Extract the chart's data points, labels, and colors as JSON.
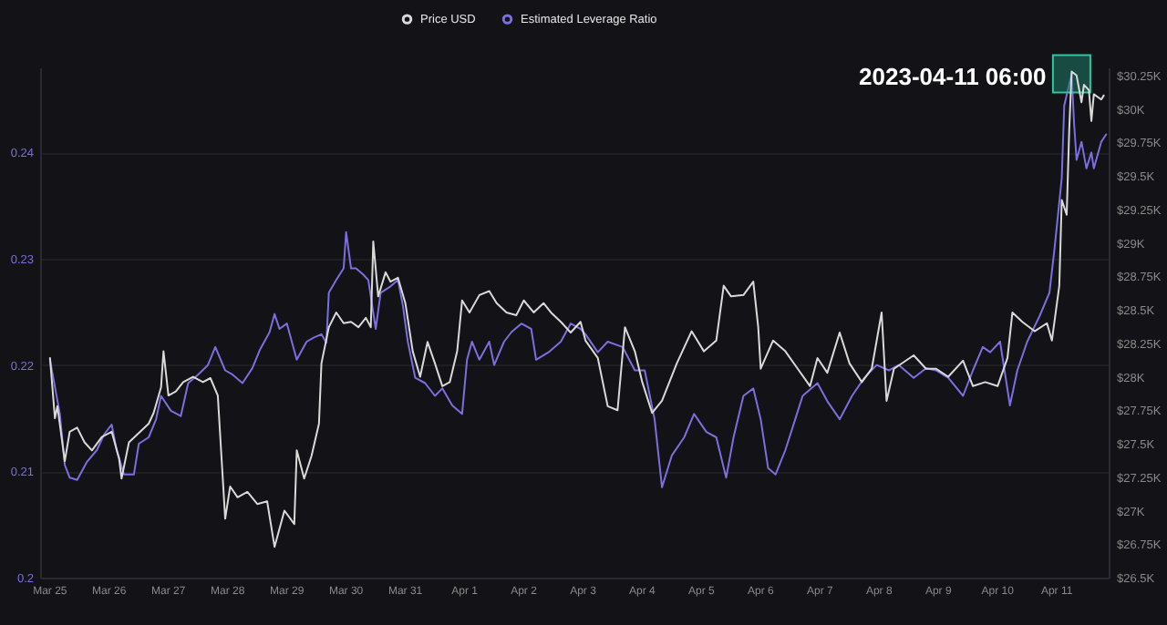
{
  "chart_data": {
    "type": "line",
    "legend": "top",
    "grid": "y",
    "xlim": [
      "2023-03-24T20:00",
      "2023-04-11T21:00"
    ],
    "xticks": [
      {
        "value": "2023-03-25",
        "label": "Mar 25"
      },
      {
        "value": "2023-03-26",
        "label": "Mar 26"
      },
      {
        "value": "2023-03-27",
        "label": "Mar 27"
      },
      {
        "value": "2023-03-28",
        "label": "Mar 28"
      },
      {
        "value": "2023-03-29",
        "label": "Mar 29"
      },
      {
        "value": "2023-03-30",
        "label": "Mar 30"
      },
      {
        "value": "2023-03-31",
        "label": "Mar 31"
      },
      {
        "value": "2023-04-01",
        "label": "Apr 1"
      },
      {
        "value": "2023-04-02",
        "label": "Apr 2"
      },
      {
        "value": "2023-04-03",
        "label": "Apr 3"
      },
      {
        "value": "2023-04-04",
        "label": "Apr 4"
      },
      {
        "value": "2023-04-05",
        "label": "Apr 5"
      },
      {
        "value": "2023-04-06",
        "label": "Apr 6"
      },
      {
        "value": "2023-04-07",
        "label": "Apr 7"
      },
      {
        "value": "2023-04-08",
        "label": "Apr 8"
      },
      {
        "value": "2023-04-09",
        "label": "Apr 9"
      },
      {
        "value": "2023-04-10",
        "label": "Apr 10"
      },
      {
        "value": "2023-04-11",
        "label": "Apr 11"
      }
    ],
    "ylim": [
      0.2,
      0.248
    ],
    "yticks": [
      0.2,
      0.21,
      0.22,
      0.23,
      0.24
    ],
    "y2lim": [
      26500,
      30310
    ],
    "y2ticks": [
      {
        "value": 26500,
        "label": "$26.5K"
      },
      {
        "value": 26750,
        "label": "$26.75K"
      },
      {
        "value": 27000,
        "label": "$27K"
      },
      {
        "value": 27250,
        "label": "$27.25K"
      },
      {
        "value": 27500,
        "label": "$27.5K"
      },
      {
        "value": 27750,
        "label": "$27.75K"
      },
      {
        "value": 28000,
        "label": "$28K"
      },
      {
        "value": 28250,
        "label": "$28.25K"
      },
      {
        "value": 28500,
        "label": "$28.5K"
      },
      {
        "value": 28750,
        "label": "$28.75K"
      },
      {
        "value": 29000,
        "label": "$29K"
      },
      {
        "value": 29250,
        "label": "$29.25K"
      },
      {
        "value": 29500,
        "label": "$29.5K"
      },
      {
        "value": 29750,
        "label": "$29.75K"
      },
      {
        "value": 30000,
        "label": "$30K"
      },
      {
        "value": 30250,
        "label": "$30.25K"
      }
    ],
    "annotations": [
      {
        "text": "2023-04-11 06:00",
        "x": "2023-04-11T06:00",
        "y": 0.2474
      }
    ],
    "series": [
      {
        "name": "Price USD",
        "color": "#d9d9d9",
        "axis": "y2",
        "x": [
          "2023-03-25T00:00",
          "2023-03-25T02:00",
          "2023-03-25T03:00",
          "2023-03-25T06:00",
          "2023-03-25T08:00",
          "2023-03-25T11:00",
          "2023-03-25T14:00",
          "2023-03-25T17:00",
          "2023-03-25T21:00",
          "2023-03-26T01:00",
          "2023-03-26T04:00",
          "2023-03-26T05:00",
          "2023-03-26T08:00",
          "2023-03-26T12:00",
          "2023-03-26T16:00",
          "2023-03-26T18:00",
          "2023-03-26T21:00",
          "2023-03-26T22:00",
          "2023-03-27T00:00",
          "2023-03-27T03:00",
          "2023-03-27T06:00",
          "2023-03-27T10:00",
          "2023-03-27T14:00",
          "2023-03-27T17:00",
          "2023-03-27T20:00",
          "2023-03-27T23:00",
          "2023-03-28T01:00",
          "2023-03-28T04:00",
          "2023-03-28T08:00",
          "2023-03-28T12:00",
          "2023-03-28T16:00",
          "2023-03-28T19:00",
          "2023-03-28T23:00",
          "2023-03-29T03:00",
          "2023-03-29T04:00",
          "2023-03-29T07:00",
          "2023-03-29T10:00",
          "2023-03-29T13:00",
          "2023-03-29T14:00",
          "2023-03-29T17:00",
          "2023-03-29T20:00",
          "2023-03-29T23:00",
          "2023-03-30T02:00",
          "2023-03-30T05:00",
          "2023-03-30T08:00",
          "2023-03-30T10:00",
          "2023-03-30T11:00",
          "2023-03-30T13:00",
          "2023-03-30T16:00",
          "2023-03-30T18:00",
          "2023-03-30T21:00",
          "2023-03-31T00:00",
          "2023-03-31T03:00",
          "2023-03-31T06:00",
          "2023-03-31T09:00",
          "2023-03-31T12:00",
          "2023-03-31T15:00",
          "2023-03-31T18:00",
          "2023-03-31T21:00",
          "2023-03-31T23:00",
          "2023-04-01T02:00",
          "2023-04-01T06:00",
          "2023-04-01T10:00",
          "2023-04-01T13:00",
          "2023-04-01T17:00",
          "2023-04-01T21:00",
          "2023-04-02T00:00",
          "2023-04-02T04:00",
          "2023-04-02T08:00",
          "2023-04-02T11:00",
          "2023-04-02T15:00",
          "2023-04-02T19:00",
          "2023-04-02T23:00",
          "2023-04-03T01:00",
          "2023-04-03T06:00",
          "2023-04-03T10:00",
          "2023-04-03T14:00",
          "2023-04-03T17:00",
          "2023-04-03T21:00",
          "2023-04-04T00:00",
          "2023-04-04T04:00",
          "2023-04-04T08:00",
          "2023-04-04T14:00",
          "2023-04-04T20:00",
          "2023-04-05T01:00",
          "2023-04-05T06:00",
          "2023-04-05T09:00",
          "2023-04-05T12:00",
          "2023-04-05T17:00",
          "2023-04-05T21:00",
          "2023-04-05T23:00",
          "2023-04-06T00:00",
          "2023-04-06T05:00",
          "2023-04-06T10:00",
          "2023-04-06T15:00",
          "2023-04-06T20:00",
          "2023-04-06T23:00",
          "2023-04-07T03:00",
          "2023-04-07T08:00",
          "2023-04-07T12:00",
          "2023-04-07T17:00",
          "2023-04-07T21:00",
          "2023-04-08T01:00",
          "2023-04-08T03:00",
          "2023-04-08T06:00",
          "2023-04-08T14:00",
          "2023-04-08T19:00",
          "2023-04-08T23:00",
          "2023-04-09T04:00",
          "2023-04-09T10:00",
          "2023-04-09T14:00",
          "2023-04-09T19:00",
          "2023-04-10T00:00",
          "2023-04-10T04:00",
          "2023-04-10T06:00",
          "2023-04-10T10:00",
          "2023-04-10T15:00",
          "2023-04-10T20:00",
          "2023-04-10T22:00",
          "2023-04-11T01:00",
          "2023-04-11T02:00",
          "2023-04-11T04:00",
          "2023-04-11T05:00",
          "2023-04-11T06:00",
          "2023-04-11T08:00",
          "2023-04-11T10:00",
          "2023-04-11T11:00",
          "2023-04-11T13:00",
          "2023-04-11T14:00",
          "2023-04-11T15:00",
          "2023-04-11T18:00",
          "2023-04-11T19:00"
        ],
        "values": [
          28140,
          27690,
          27780,
          27370,
          27590,
          27620,
          27510,
          27450,
          27550,
          27590,
          27390,
          27240,
          27510,
          27580,
          27650,
          27730,
          27920,
          28190,
          27860,
          27890,
          27960,
          28000,
          27960,
          27990,
          27860,
          26940,
          27180,
          27100,
          27140,
          27050,
          27070,
          26730,
          27000,
          26900,
          27450,
          27240,
          27410,
          27650,
          28100,
          28370,
          28480,
          28400,
          28410,
          28370,
          28440,
          28370,
          29010,
          28600,
          28780,
          28710,
          28740,
          28550,
          28190,
          28000,
          28260,
          28100,
          27930,
          27960,
          28190,
          28570,
          28480,
          28610,
          28640,
          28550,
          28480,
          28460,
          28570,
          28480,
          28550,
          28480,
          28410,
          28330,
          28410,
          28270,
          28140,
          27780,
          27750,
          28370,
          28190,
          27960,
          27730,
          27820,
          28100,
          28340,
          28190,
          28270,
          28680,
          28600,
          28610,
          28710,
          28370,
          28060,
          28270,
          28190,
          28060,
          27930,
          28140,
          28030,
          28330,
          28100,
          27960,
          28060,
          28480,
          27820,
          28060,
          28160,
          28060,
          28060,
          28000,
          28120,
          27930,
          27960,
          27930,
          28140,
          28480,
          28410,
          28340,
          28400,
          28270,
          28680,
          29320,
          29210,
          29830,
          30280,
          30250,
          30050,
          30180,
          30140,
          29910,
          30110,
          30070,
          30100
        ]
      },
      {
        "name": "Estimated Leverage Ratio",
        "color": "#7b6fe0",
        "x": [
          "2023-03-25T00:00",
          "2023-03-25T04:00",
          "2023-03-25T06:00",
          "2023-03-25T08:00",
          "2023-03-25T11:00",
          "2023-03-25T15:00",
          "2023-03-25T19:00",
          "2023-03-25T22:00",
          "2023-03-26T01:00",
          "2023-03-26T03:00",
          "2023-03-26T06:00",
          "2023-03-26T10:00",
          "2023-03-26T12:00",
          "2023-03-26T16:00",
          "2023-03-26T19:00",
          "2023-03-26T21:00",
          "2023-03-27T01:00",
          "2023-03-27T05:00",
          "2023-03-27T08:00",
          "2023-03-27T12:00",
          "2023-03-27T16:00",
          "2023-03-27T19:00",
          "2023-03-27T23:00",
          "2023-03-28T02:00",
          "2023-03-28T06:00",
          "2023-03-28T10:00",
          "2023-03-28T13:00",
          "2023-03-28T17:00",
          "2023-03-28T19:00",
          "2023-03-28T21:00",
          "2023-03-29T00:00",
          "2023-03-29T04:00",
          "2023-03-29T08:00",
          "2023-03-29T11:00",
          "2023-03-29T14:00",
          "2023-03-29T16:00",
          "2023-03-29T17:00",
          "2023-03-29T20:00",
          "2023-03-29T23:00",
          "2023-03-30T00:00",
          "2023-03-30T02:00",
          "2023-03-30T04:00",
          "2023-03-30T07:00",
          "2023-03-30T09:00",
          "2023-03-30T12:00",
          "2023-03-30T14:00",
          "2023-03-30T18:00",
          "2023-03-30T21:00",
          "2023-03-30T23:00",
          "2023-03-31T01:00",
          "2023-03-31T04:00",
          "2023-03-31T08:00",
          "2023-03-31T12:00",
          "2023-03-31T15:00",
          "2023-03-31T19:00",
          "2023-03-31T23:00",
          "2023-04-01T01:00",
          "2023-04-01T03:00",
          "2023-04-01T06:00",
          "2023-04-01T10:00",
          "2023-04-01T12:00",
          "2023-04-01T16:00",
          "2023-04-01T19:00",
          "2023-04-01T23:00",
          "2023-04-02T03:00",
          "2023-04-02T05:00",
          "2023-04-02T10:00",
          "2023-04-02T15:00",
          "2023-04-02T19:00",
          "2023-04-02T23:00",
          "2023-04-03T01:00",
          "2023-04-03T06:00",
          "2023-04-03T10:00",
          "2023-04-03T16:00",
          "2023-04-03T21:00",
          "2023-04-04T01:00",
          "2023-04-04T05:00",
          "2023-04-04T08:00",
          "2023-04-04T12:00",
          "2023-04-04T17:00",
          "2023-04-04T21:00",
          "2023-04-05T02:00",
          "2023-04-05T06:00",
          "2023-04-05T10:00",
          "2023-04-05T13:00",
          "2023-04-05T17:00",
          "2023-04-05T21:00",
          "2023-04-06T00:00",
          "2023-04-06T03:00",
          "2023-04-06T06:00",
          "2023-04-06T10:00",
          "2023-04-06T14:00",
          "2023-04-06T17:00",
          "2023-04-06T23:00",
          "2023-04-07T03:00",
          "2023-04-07T08:00",
          "2023-04-07T13:00",
          "2023-04-07T18:00",
          "2023-04-07T23:00",
          "2023-04-08T04:00",
          "2023-04-08T08:00",
          "2023-04-08T14:00",
          "2023-04-08T19:00",
          "2023-04-08T23:00",
          "2023-04-09T04:00",
          "2023-04-09T10:00",
          "2023-04-09T14:00",
          "2023-04-09T18:00",
          "2023-04-09T21:00",
          "2023-04-10T01:00",
          "2023-04-10T05:00",
          "2023-04-10T08:00",
          "2023-04-10T12:00",
          "2023-04-10T17:00",
          "2023-04-10T21:00",
          "2023-04-10T23:00",
          "2023-04-11T02:00",
          "2023-04-11T03:00",
          "2023-04-11T06:00",
          "2023-04-11T07:00",
          "2023-04-11T08:00",
          "2023-04-11T10:00",
          "2023-04-11T12:00",
          "2023-04-11T14:00",
          "2023-04-11T15:00",
          "2023-04-11T18:00",
          "2023-04-11T20:00"
        ],
        "values": [
          0.2205,
          0.2154,
          0.2106,
          0.2094,
          0.2092,
          0.2109,
          0.212,
          0.2135,
          0.2144,
          0.212,
          0.2097,
          0.2097,
          0.2126,
          0.2132,
          0.2149,
          0.2171,
          0.2157,
          0.2152,
          0.2183,
          0.2191,
          0.22,
          0.2217,
          0.2195,
          0.2191,
          0.2183,
          0.2197,
          0.2214,
          0.2231,
          0.2248,
          0.2234,
          0.2239,
          0.2205,
          0.2222,
          0.2226,
          0.2229,
          0.2221,
          0.2268,
          0.228,
          0.2291,
          0.2325,
          0.2291,
          0.2291,
          0.2285,
          0.228,
          0.2234,
          0.2268,
          0.2274,
          0.228,
          0.2256,
          0.2222,
          0.2188,
          0.2183,
          0.2171,
          0.2178,
          0.2162,
          0.2154,
          0.2205,
          0.2222,
          0.2205,
          0.2222,
          0.22,
          0.2222,
          0.2231,
          0.2239,
          0.2234,
          0.2205,
          0.2212,
          0.2222,
          0.2239,
          0.2234,
          0.2229,
          0.2212,
          0.2222,
          0.2217,
          0.2195,
          0.2195,
          0.2149,
          0.2085,
          0.2115,
          0.2132,
          0.2154,
          0.2137,
          0.2132,
          0.2094,
          0.2132,
          0.2171,
          0.2178,
          0.2149,
          0.2103,
          0.2097,
          0.212,
          0.2149,
          0.2171,
          0.2183,
          0.2166,
          0.2149,
          0.2171,
          0.2188,
          0.22,
          0.2195,
          0.22,
          0.2188,
          0.2197,
          0.2195,
          0.2188,
          0.2171,
          0.2195,
          0.2217,
          0.2212,
          0.2222,
          0.2162,
          0.2195,
          0.2222,
          0.2246,
          0.2268,
          0.2308,
          0.2376,
          0.2444,
          0.2474,
          0.2427,
          0.2393,
          0.241,
          0.2385,
          0.24,
          0.2385,
          0.241,
          0.2417
        ]
      }
    ]
  }
}
